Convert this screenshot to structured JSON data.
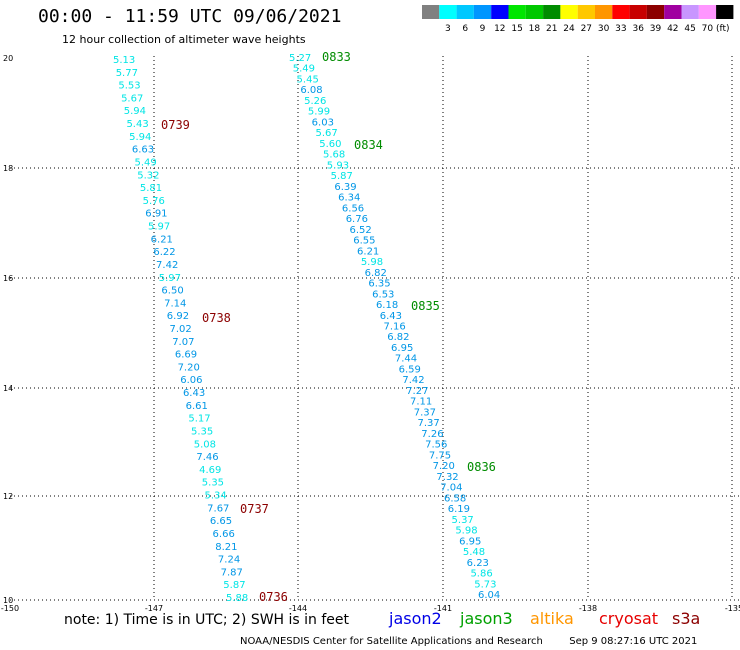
{
  "header": {
    "title": "00:00 - 11:59 UTC 09/06/2021",
    "subtitle": "12 hour collection of altimeter wave heights"
  },
  "legend": {
    "unit_label": "(ft)",
    "swatches": [
      {
        "color": "#808080",
        "label": ""
      },
      {
        "color": "#00ffff",
        "label": "3"
      },
      {
        "color": "#00c8ff",
        "label": "6"
      },
      {
        "color": "#0096ff",
        "label": "9"
      },
      {
        "color": "#0000ff",
        "label": "12"
      },
      {
        "color": "#00e600",
        "label": "15"
      },
      {
        "color": "#00c800",
        "label": "18"
      },
      {
        "color": "#008c00",
        "label": "21"
      },
      {
        "color": "#ffff00",
        "label": "24"
      },
      {
        "color": "#ffc800",
        "label": "27"
      },
      {
        "color": "#ff9600",
        "label": "30"
      },
      {
        "color": "#ff0000",
        "label": "33"
      },
      {
        "color": "#c80000",
        "label": "36"
      },
      {
        "color": "#8c0000",
        "label": "39"
      },
      {
        "color": "#a000a0",
        "label": "42"
      },
      {
        "color": "#c896ff",
        "label": "45"
      },
      {
        "color": "#ff96ff",
        "label": "70"
      },
      {
        "color": "#000000",
        "label": ""
      }
    ]
  },
  "map": {
    "lon_ticks": [
      "-150",
      "-147",
      "-144",
      "-141",
      "-138",
      "-135"
    ],
    "lat_ticks": [
      "20",
      "18",
      "16",
      "14",
      "12",
      "10"
    ],
    "colors": {
      "low": "#00e5e5",
      "mid": "#0096e6",
      "time_red": "#8c0000",
      "time_green": "#008c00"
    },
    "track1": {
      "values": [
        "5.13",
        "5.77",
        "5.53",
        "5.67",
        "5.94",
        "5.43",
        "5.94",
        "6.63",
        "5.49",
        "5.32",
        "5.81",
        "5.76",
        "6.91",
        "5.97",
        "6.21",
        "6.22",
        "7.42",
        "5.97",
        "6.50",
        "7.14",
        "6.92",
        "7.02",
        "7.07",
        "6.69",
        "7.20",
        "6.06",
        "6.43",
        "6.61",
        "5.17",
        "5.35",
        "5.08",
        "7.46",
        "4.69",
        "5.35",
        "5.34",
        "7.67",
        "6.65",
        "6.66",
        "8.21",
        "7.24",
        "7.87",
        "5.87",
        "5.88"
      ],
      "times": [
        "0739",
        "0738",
        "0737",
        "0736"
      ]
    },
    "track2": {
      "values": [
        "5.27",
        "5.49",
        "5.45",
        "6.08",
        "5.26",
        "5.99",
        "6.03",
        "5.67",
        "5.60",
        "5.68",
        "5.93",
        "5.87",
        "6.39",
        "6.34",
        "6.56",
        "6.76",
        "6.52",
        "6.55",
        "6.21",
        "5.98",
        "6.82",
        "6.35",
        "6.53",
        "6.18",
        "6.43",
        "7.16",
        "6.82",
        "6.95",
        "7.44",
        "6.59",
        "7.42",
        "7.27",
        "7.11",
        "7.37",
        "7.37",
        "7.26",
        "7.56",
        "7.75",
        "7.20",
        "7.32",
        "7.04",
        "6.58",
        "6.19",
        "5.37",
        "5.98",
        "6.95",
        "5.48",
        "6.23",
        "5.86",
        "5.73",
        "6.04"
      ],
      "times": [
        "0833",
        "0834",
        "0835",
        "0836"
      ]
    }
  },
  "footer": {
    "note": "note: 1) Time is in UTC; 2) SWH is in feet",
    "satellites": [
      {
        "name": "jason2",
        "color": "#0000e6"
      },
      {
        "name": "jason3",
        "color": "#00a000"
      },
      {
        "name": "altika",
        "color": "#ff9600"
      },
      {
        "name": "cryosat",
        "color": "#e60000"
      },
      {
        "name": "s3a",
        "color": "#8c0000"
      }
    ],
    "credit": "NOAA/NESDIS Center for Satellite Applications and Research",
    "timestamp": "Sep  9 08:27:16 UTC 2021"
  }
}
